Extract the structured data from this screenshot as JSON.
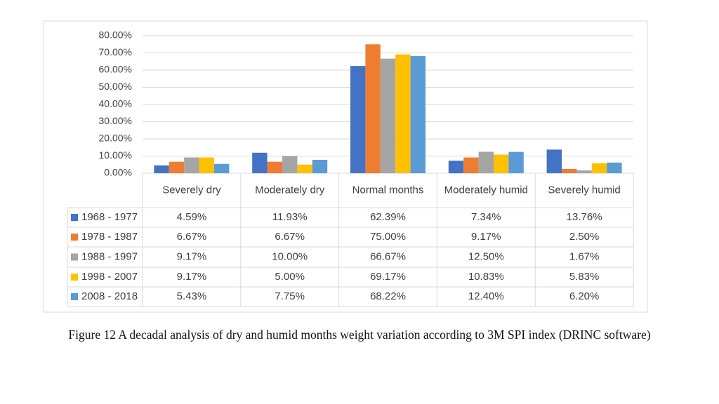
{
  "chart_data": {
    "type": "bar",
    "caption": "Figure 12 A decadal analysis of dry and humid months weight variation according to 3M SPI index (DRINC software)",
    "categories": [
      "Severely dry",
      "Moderately dry",
      "Normal months",
      "Moderately humid",
      "Severely humid"
    ],
    "series": [
      {
        "name": "1968 - 1977",
        "color": "#4472c4",
        "values": [
          4.59,
          11.93,
          62.39,
          7.34,
          13.76
        ],
        "value_labels": [
          "4.59%",
          "11.93%",
          "62.39%",
          "7.34%",
          "13.76%"
        ]
      },
      {
        "name": "1978 - 1987",
        "color": "#ed7d31",
        "values": [
          6.67,
          6.67,
          75.0,
          9.17,
          2.5
        ],
        "value_labels": [
          "6.67%",
          "6.67%",
          "75.00%",
          "9.17%",
          "2.50%"
        ]
      },
      {
        "name": "1988 - 1997",
        "color": "#a5a5a5",
        "values": [
          9.17,
          10.0,
          66.67,
          12.5,
          1.67
        ],
        "value_labels": [
          "9.17%",
          "10.00%",
          "66.67%",
          "12.50%",
          "1.67%"
        ]
      },
      {
        "name": "1998 - 2007",
        "color": "#ffc000",
        "values": [
          9.17,
          5.0,
          69.17,
          10.83,
          5.83
        ],
        "value_labels": [
          "9.17%",
          "5.00%",
          "69.17%",
          "10.83%",
          "5.83%"
        ]
      },
      {
        "name": "2008 - 2018",
        "color": "#5b9bd5",
        "values": [
          5.43,
          7.75,
          68.22,
          12.4,
          6.2
        ],
        "value_labels": [
          "5.43%",
          "7.75%",
          "68.22%",
          "12.40%",
          "6.20%"
        ]
      }
    ],
    "ylim": [
      0,
      80
    ],
    "yticks": [
      {
        "value": 0,
        "label": "0.00%"
      },
      {
        "value": 10,
        "label": "10.00%"
      },
      {
        "value": 20,
        "label": "20.00%"
      },
      {
        "value": 30,
        "label": "30.00%"
      },
      {
        "value": 40,
        "label": "40.00%"
      },
      {
        "value": 50,
        "label": "50.00%"
      },
      {
        "value": 60,
        "label": "60.00%"
      },
      {
        "value": 70,
        "label": "70.00%"
      },
      {
        "value": 80,
        "label": "80.00%"
      }
    ],
    "grid": true
  }
}
